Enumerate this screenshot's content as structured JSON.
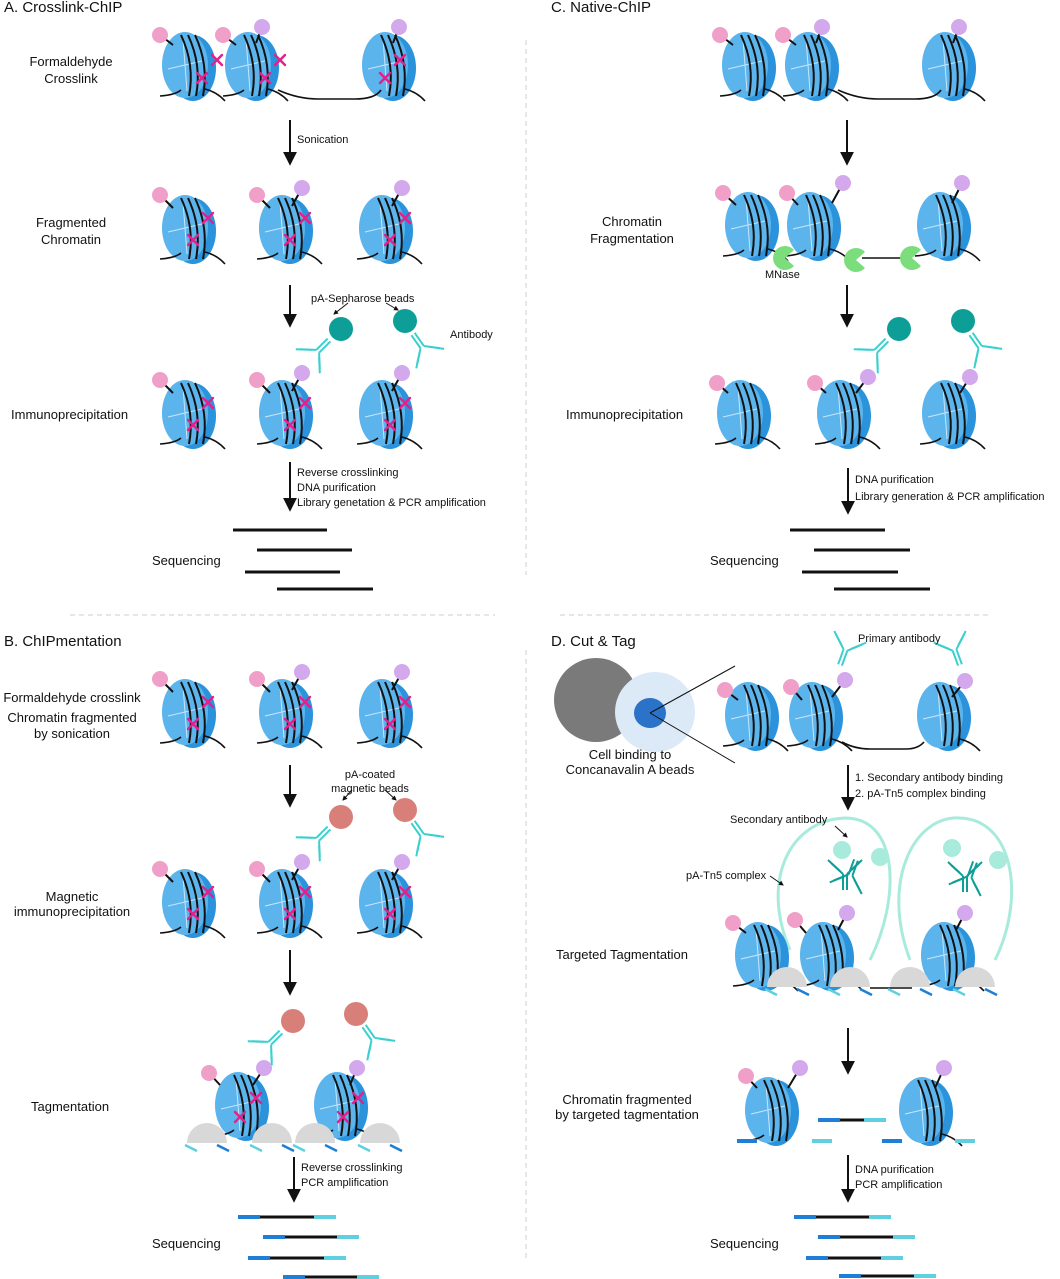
{
  "panels": {
    "a": {
      "title": "A. Crosslink-ChIP",
      "step1": [
        "Formaldehyde",
        "Crosslink"
      ],
      "arrow1": "Sonication",
      "step2": [
        "Fragmented",
        "Chromatin"
      ],
      "beads": "pA-Sepharose beads",
      "antibody": "Antibody",
      "step3": "Immunoprecipitation",
      "arrow3": [
        "Reverse crosslinking",
        "DNA purification",
        "Library genetation & PCR amplification"
      ],
      "step4": "Sequencing"
    },
    "b": {
      "title": "B. ChIPmentation",
      "step1a": "Formaldehyde crosslink",
      "step1b": [
        "Chromatin fragmented",
        "by sonication"
      ],
      "beads": [
        "pA-coated",
        "magnetic beads"
      ],
      "step2": [
        "Magnetic",
        "immunoprecipitation"
      ],
      "step3": "Tagmentation",
      "arrow3": [
        "Reverse crosslinking",
        "PCR amplification"
      ],
      "step4": "Sequencing"
    },
    "c": {
      "title": "C. Native-ChIP",
      "step2": [
        "Chromatin",
        "Fragmentation"
      ],
      "mnase": "MNase",
      "step3": "Immunoprecipitation",
      "arrow3": [
        "DNA purification",
        "Library generation & PCR amplification"
      ],
      "step4": "Sequencing"
    },
    "d": {
      "title": "D. Cut & Tag",
      "primary": "Primary antibody",
      "cell": [
        "Cell binding to",
        "Concanavalin A beads"
      ],
      "arrow1": [
        "1. Secondary antibody binding",
        "2. pA-Tn5 complex binding"
      ],
      "secondary": "Secondary antibody",
      "tn5": "pA-Tn5 complex",
      "step2": "Targeted Tagmentation",
      "step3": [
        "Chromatin fragmented",
        "by targeted tagmentation"
      ],
      "arrow3": [
        "DNA purification",
        "PCR amplification"
      ],
      "step4": "Sequencing"
    }
  },
  "colors": {
    "nucleosome": "#5bb4ec",
    "nucleosome_dark": "#2a93dc",
    "pink_mark": "#f0a0c8",
    "purple_mark": "#d4a8ec",
    "crosslink": "#e3208c",
    "teal_bead": "#0e9e98",
    "red_bead": "#d97f7a",
    "antibody": "#3ccfcf",
    "antibody_dark": "#0e9e98",
    "mnase": "#7cdd7c",
    "tn5": "#d8d8d8",
    "tn5_loop": "#a8ebdc",
    "cell": "#7a7a7a",
    "cell_bead": "#dce9f7",
    "cell_core": "#2a73c8",
    "adapter_blue": "#1f7ed6",
    "adapter_cyan": "#5fd0e0"
  }
}
